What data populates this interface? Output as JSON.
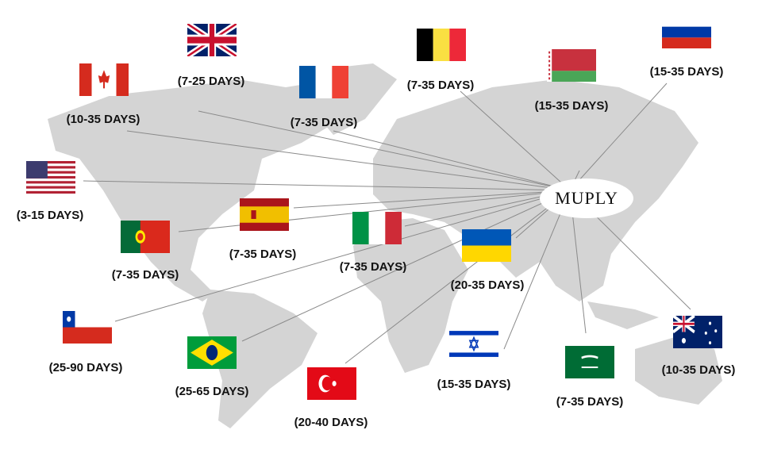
{
  "hub": {
    "name": "MUPLY"
  },
  "colors": {
    "land": "#d4d4d4",
    "lines": "#8a8a8a"
  },
  "countries": [
    {
      "flag": "uk-flag",
      "days": "(7-25 DAYS)"
    },
    {
      "flag": "canada-flag",
      "days": "(10-35 DAYS)"
    },
    {
      "flag": "france-flag",
      "days": "(7-35 DAYS)"
    },
    {
      "flag": "belgium-flag",
      "days": "(7-35 DAYS)"
    },
    {
      "flag": "belarus-flag",
      "days": "(15-35 DAYS)"
    },
    {
      "flag": "russia-flag",
      "days": "(15-35 DAYS)"
    },
    {
      "flag": "usa-flag",
      "days": "(3-15 DAYS)"
    },
    {
      "flag": "spain-flag",
      "days": "(7-35 DAYS)"
    },
    {
      "flag": "portugal-flag",
      "days": "(7-35 DAYS)"
    },
    {
      "flag": "italy-flag",
      "days": "(7-35 DAYS)"
    },
    {
      "flag": "ukraine-flag",
      "days": "(20-35 DAYS)"
    },
    {
      "flag": "chile-flag",
      "days": "(25-90 DAYS)"
    },
    {
      "flag": "brazil-flag",
      "days": "(25-65 DAYS)"
    },
    {
      "flag": "turkey-flag",
      "days": "(20-40 DAYS)"
    },
    {
      "flag": "israel-flag",
      "days": "(15-35 DAYS)"
    },
    {
      "flag": "saudi-arabia-flag",
      "days": "(7-35 DAYS)"
    },
    {
      "flag": "australia-flag",
      "days": "(10-35 DAYS)"
    }
  ]
}
